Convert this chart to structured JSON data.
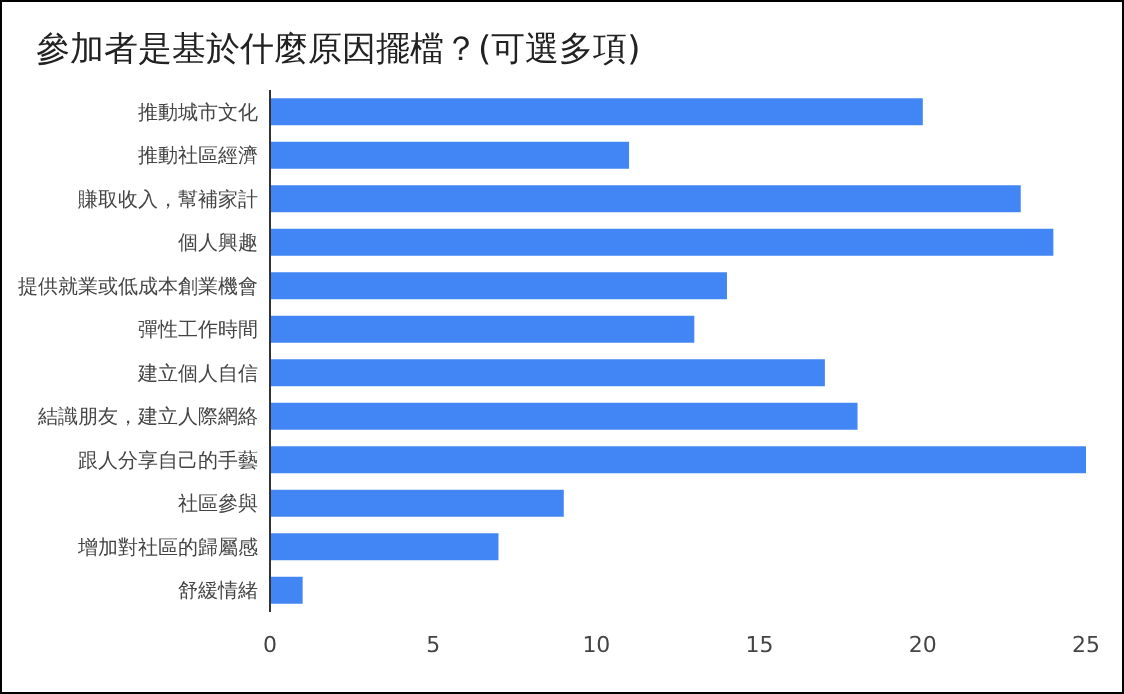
{
  "chart_data": {
    "type": "bar",
    "orientation": "horizontal",
    "title": "參加者是基於什麼原因擺檔？(可選多項)",
    "categories": [
      "推動城市文化",
      "推動社區經濟",
      "賺取收入，幫補家計",
      "個人興趣",
      "提供就業或低成本創業機會",
      "彈性工作時間",
      "建立個人自信",
      "結識朋友，建立人際網絡",
      "跟人分享自己的手藝",
      "社區參與",
      "增加對社區的歸屬感",
      "舒緩情緒"
    ],
    "values": [
      20,
      11,
      23,
      24,
      14,
      13,
      17,
      18,
      25,
      9,
      7,
      1
    ],
    "color": "#4285f4",
    "xlim": [
      0,
      25
    ],
    "xticks": [
      0,
      5,
      10,
      15,
      20,
      25
    ]
  }
}
